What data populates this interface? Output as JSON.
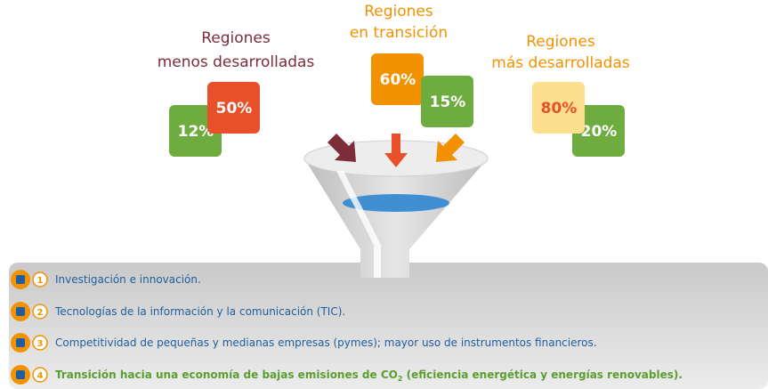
{
  "groups": [
    {
      "title": [
        "Regiones",
        "menos desarrolladas"
      ],
      "back": "12%",
      "front": "50%"
    },
    {
      "title": [
        "Regiones",
        "en transición"
      ],
      "back": "15%",
      "front": "60%"
    },
    {
      "title": [
        "Regiones",
        "más desarrolladas"
      ],
      "back": "20%",
      "front": "80%"
    }
  ],
  "items": [
    {
      "number": "1",
      "text": "Investigación e innovación."
    },
    {
      "number": "2",
      "text": "Tecnologías de la información y la comunicación (TIC)."
    },
    {
      "number": "3",
      "text": "Competitividad de pequeñas y medianas empresas (pymes); mayor uso de instrumentos financieros."
    },
    {
      "number": "4",
      "text": "Transición hacia una economía de bajas emisiones de CO",
      "sub": "2",
      "tail": " (eficiencia energética y energías renovables)."
    }
  ]
}
